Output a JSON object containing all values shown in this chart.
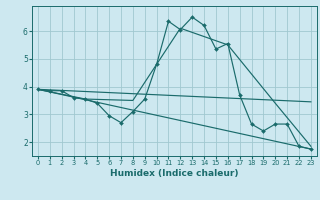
{
  "title": "",
  "xlabel": "Humidex (Indice chaleur)",
  "bg_color": "#cde8f0",
  "grid_color": "#a0c8d0",
  "line_color": "#1a6b6b",
  "xlim": [
    -0.5,
    23.5
  ],
  "ylim": [
    1.5,
    6.9
  ],
  "yticks": [
    2,
    3,
    4,
    5,
    6
  ],
  "xticks": [
    0,
    1,
    2,
    3,
    4,
    5,
    6,
    7,
    8,
    9,
    10,
    11,
    12,
    13,
    14,
    15,
    16,
    17,
    18,
    19,
    20,
    21,
    22,
    23
  ],
  "line1_x": [
    0,
    1,
    2,
    3,
    4,
    5,
    6,
    7,
    8,
    9,
    10,
    11,
    12,
    13,
    14,
    15,
    16,
    17,
    18,
    19,
    20,
    21,
    22,
    23
  ],
  "line1_y": [
    3.9,
    3.85,
    3.85,
    3.6,
    3.55,
    3.4,
    2.95,
    2.7,
    3.1,
    3.55,
    4.8,
    6.35,
    6.05,
    6.5,
    6.2,
    5.35,
    5.55,
    3.7,
    2.65,
    2.4,
    2.65,
    2.65,
    1.85,
    1.75
  ],
  "line2_x": [
    0,
    4,
    8,
    12,
    16,
    20,
    23
  ],
  "line2_y": [
    3.9,
    3.55,
    3.5,
    6.1,
    5.5,
    3.4,
    1.85
  ],
  "line3_x": [
    0,
    23
  ],
  "line3_y": [
    3.9,
    3.45
  ],
  "line4_x": [
    0,
    23
  ],
  "line4_y": [
    3.9,
    1.75
  ]
}
